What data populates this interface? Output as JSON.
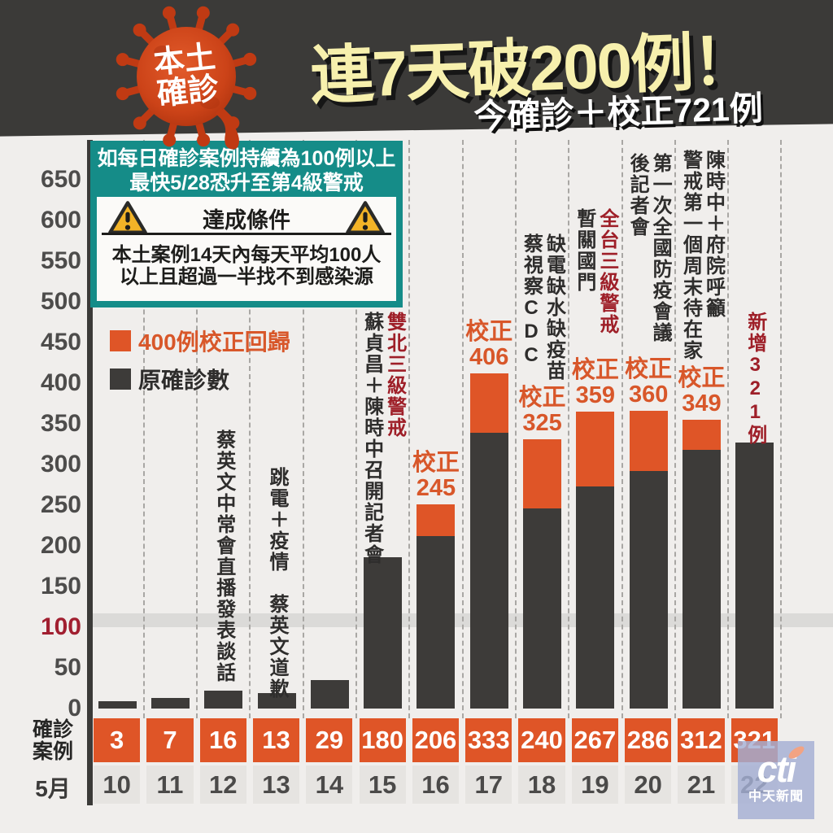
{
  "header": {
    "badge_line1": "本土",
    "badge_line2": "確診",
    "title": "連7天破200例！",
    "subtitle": "今確診＋校正721例"
  },
  "alert": {
    "line1": "如每日確診案例持續為100例以上",
    "line2": "最快5/28恐升至第4級警戒",
    "condition_title": "達成條件",
    "condition_line1": "本土案例14天內每天平均100人",
    "condition_line2": "以上且超過一半找不到感染源"
  },
  "legend": {
    "corrected_label": "400例校正回歸",
    "original_label": "原確診數"
  },
  "rows": {
    "cases_label_line1": "確診",
    "cases_label_line2": "案例",
    "month_label": "5月"
  },
  "watermark": {
    "brand": "cti",
    "name": "中天新聞"
  },
  "colors": {
    "orange": "#df5527",
    "bar_black": "#3d3b39",
    "teal": "#158c88",
    "dark_red": "#9e1f28",
    "label_orange": "#d8572a",
    "text_black": "#2e2d2c",
    "tick_gray": "#4d4c4b",
    "tick_red": "#a11f30"
  },
  "chart_data": {
    "type": "bar",
    "stacked": true,
    "month": "5月",
    "categories": [
      "10",
      "11",
      "12",
      "13",
      "14",
      "15",
      "16",
      "17",
      "18",
      "19",
      "20",
      "21",
      "22"
    ],
    "series": [
      {
        "name": "原確診數",
        "color": "#3d3b39",
        "values": [
          3,
          7,
          16,
          13,
          29,
          180,
          206,
          333,
          240,
          267,
          286,
          312,
          321
        ]
      },
      {
        "name": "400例校正回歸",
        "color": "#df5527",
        "values": [
          0,
          0,
          0,
          0,
          0,
          0,
          39,
          73,
          85,
          92,
          74,
          37,
          0
        ]
      }
    ],
    "corrected_totals": [
      null,
      null,
      null,
      null,
      null,
      null,
      245,
      406,
      325,
      359,
      360,
      349,
      null
    ],
    "correction_word": "校正",
    "ylim": [
      0,
      650
    ],
    "ytick_step": 50,
    "highlight_value": 100,
    "legend_position": "top-left",
    "grid": "vertical-dashed",
    "annotations": [
      {
        "col": 2,
        "top": 528,
        "lines": [
          {
            "text": "蔡英文中常會直播發表談話",
            "color": "#2e2d2c"
          }
        ]
      },
      {
        "col": 3,
        "top": 574,
        "lines": [
          {
            "text": "跳電＋疫情　蔡英文道歉",
            "color": "#2e2d2c"
          }
        ]
      },
      {
        "col": 5,
        "top": 383,
        "lines": [
          {
            "text": "雙北三級警戒",
            "color": "#9e1f28"
          },
          {
            "text": "蘇貞昌＋陳時中召開記者會",
            "color": "#2e2d2c"
          }
        ]
      },
      {
        "col": 8,
        "top": 287,
        "lines": [
          {
            "text": "缺電缺水缺疫苗",
            "color": "#2e2d2c"
          },
          {
            "text": "蔡視察CDC",
            "color": "#2e2d2c"
          }
        ]
      },
      {
        "col": 9,
        "top": 256,
        "lines": [
          {
            "text": "全台三級警戒",
            "color": "#9e1f28"
          },
          {
            "text": "暫關國門",
            "color": "#2e2d2c"
          }
        ]
      },
      {
        "col": 10,
        "top": 188,
        "lines": [
          {
            "text": "第一次全國防疫會議",
            "color": "#2e2d2c"
          },
          {
            "text": "後記者會",
            "color": "#2e2d2c"
          }
        ]
      },
      {
        "col": 11,
        "top": 184,
        "lines": [
          {
            "text": "陳時中＋府院呼籲",
            "color": "#2e2d2c"
          },
          {
            "text": "警戒第一個周末待在家",
            "color": "#2e2d2c"
          }
        ]
      },
      {
        "col": 12,
        "top": 383,
        "lines": [
          {
            "text": "新增321例",
            "color": "#9e1f28"
          }
        ]
      }
    ]
  }
}
